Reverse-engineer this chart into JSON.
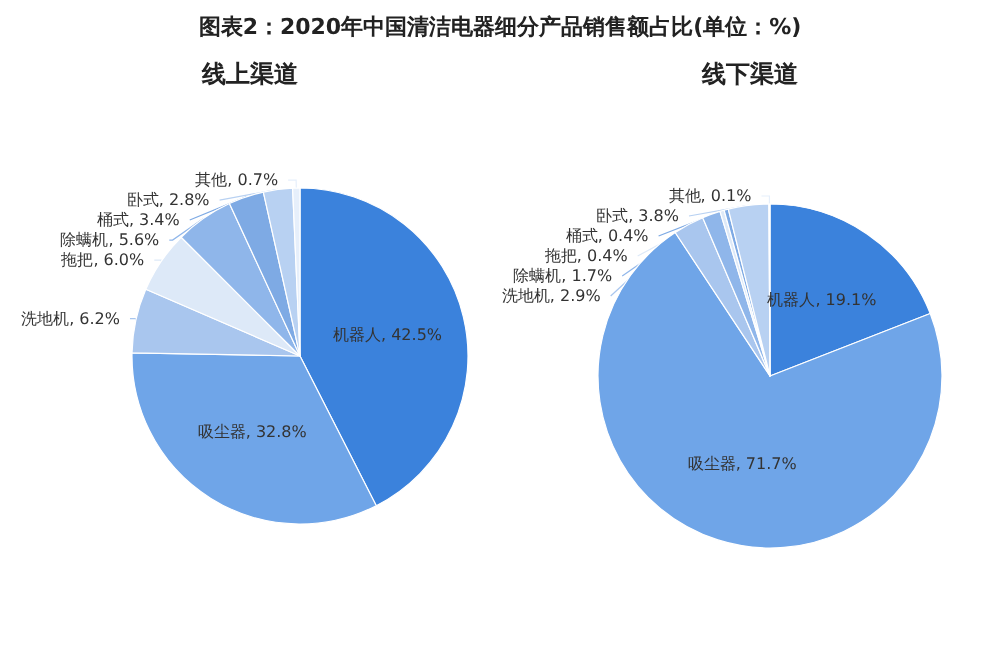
{
  "chart_data": [
    {
      "type": "pie",
      "title": "图表2：2020年中国清洁电器细分产品销售额占比(单位：%)",
      "subtitle": "线上渠道",
      "categories": [
        "机器人",
        "吸尘器",
        "洗地机",
        "拖把",
        "除螨机",
        "桶式",
        "卧式",
        "其他"
      ],
      "values": [
        42.5,
        32.8,
        6.2,
        6.0,
        5.6,
        3.4,
        2.8,
        0.7
      ],
      "value_labels": [
        "42.5%",
        "32.8%",
        "6.2%",
        "6.0%",
        "5.6%",
        "3.4%",
        "2.8%",
        "0.7%"
      ],
      "colors": [
        "#3b82dc",
        "#6fa5e8",
        "#a9c6ee",
        "#dde9f8",
        "#8fb6ea",
        "#7eaae4",
        "#b8d1f2",
        "#e6effb"
      ]
    },
    {
      "type": "pie",
      "subtitle": "线下渠道",
      "categories": [
        "机器人",
        "吸尘器",
        "洗地机",
        "除螨机",
        "拖把",
        "桶式",
        "卧式",
        "其他"
      ],
      "values": [
        19.1,
        71.7,
        2.9,
        1.7,
        0.4,
        0.4,
        3.8,
        0.1
      ],
      "value_labels": [
        "19.1%",
        "71.7%",
        "2.9%",
        "1.7%",
        "0.4%",
        "0.4%",
        "3.8%",
        "0.1%"
      ],
      "colors": [
        "#3b82dc",
        "#6fa5e8",
        "#a9c6ee",
        "#8fb6ea",
        "#dde9f8",
        "#7eaae4",
        "#b8d1f2",
        "#e6effb"
      ]
    }
  ]
}
